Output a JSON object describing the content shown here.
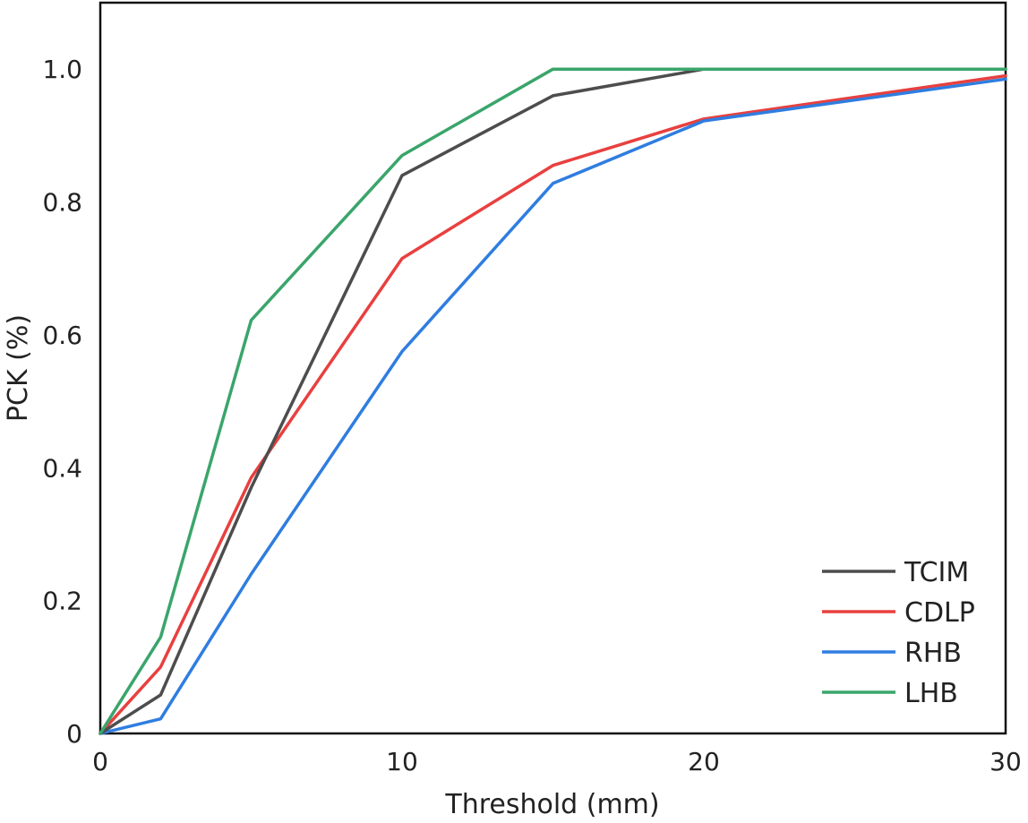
{
  "chart_data": {
    "type": "line",
    "title": "",
    "xlabel": "Threshold (mm)",
    "ylabel": "PCK (%)",
    "xlim": [
      0,
      30
    ],
    "ylim": [
      0,
      1.1
    ],
    "x_ticks": [
      {
        "value": 0,
        "label": "0"
      },
      {
        "value": 10,
        "label": "10"
      },
      {
        "value": 20,
        "label": "20"
      },
      {
        "value": 30,
        "label": "30"
      }
    ],
    "y_ticks": [
      {
        "value": 0,
        "label": "0"
      },
      {
        "value": 0.2,
        "label": "0.2"
      },
      {
        "value": 0.4,
        "label": "0.4"
      },
      {
        "value": 0.6,
        "label": "0.6"
      },
      {
        "value": 0.8,
        "label": "0.8"
      },
      {
        "value": 1.0,
        "label": "1.0"
      }
    ],
    "grid": false,
    "legend_position": "bottom-right",
    "x": [
      0,
      2,
      5,
      10,
      15,
      20,
      30
    ],
    "series": [
      {
        "name": "TCIM",
        "color": "#4d4d4d",
        "values": [
          0,
          0.058,
          0.37,
          0.84,
          0.96,
          1.0,
          1.0
        ]
      },
      {
        "name": "CDLP",
        "color": "#e8403f",
        "values": [
          0,
          0.1,
          0.385,
          0.715,
          0.855,
          0.925,
          0.99
        ]
      },
      {
        "name": "RHB",
        "color": "#2f7de0",
        "values": [
          0,
          0.022,
          0.24,
          0.575,
          0.828,
          0.922,
          0.985
        ]
      },
      {
        "name": "LHB",
        "color": "#3aa56b",
        "values": [
          0,
          0.145,
          0.622,
          0.87,
          1.0,
          1.0,
          1.0
        ]
      }
    ]
  }
}
